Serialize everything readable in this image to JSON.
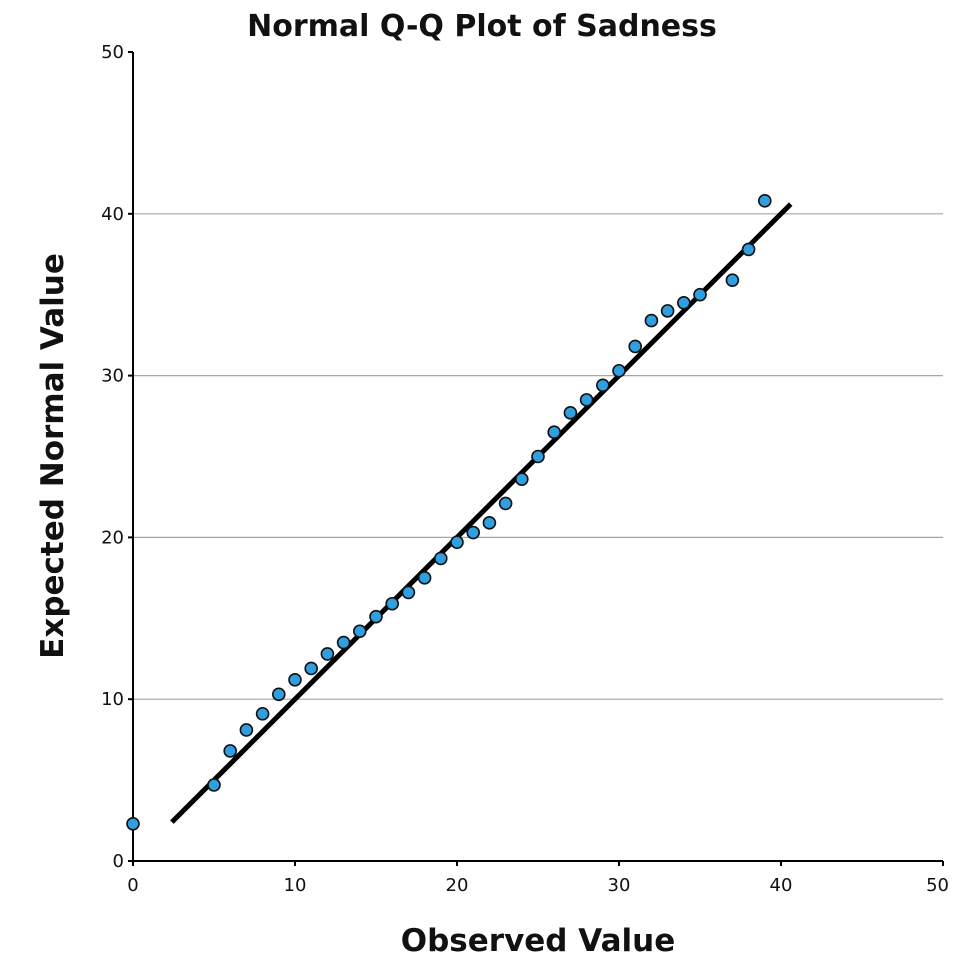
{
  "chart_data": {
    "type": "scatter",
    "title": "Normal Q-Q Plot of Sadness",
    "xlabel": "Observed Value",
    "ylabel": "Expected Normal Value",
    "xlim": [
      0,
      50
    ],
    "ylim": [
      0,
      50
    ],
    "x_ticks": [
      "0",
      "10",
      "20",
      "30",
      "40",
      "50"
    ],
    "y_ticks": [
      "0",
      "10",
      "20",
      "30",
      "40",
      "50"
    ],
    "grid": "horizontal",
    "marker_color": "#2f9fe0",
    "reference_line": {
      "x": [
        2.4,
        40.6
      ],
      "y": [
        2.4,
        40.6
      ]
    },
    "points": [
      {
        "x": 0,
        "y": 2.3
      },
      {
        "x": 5,
        "y": 4.7
      },
      {
        "x": 6,
        "y": 6.8
      },
      {
        "x": 7,
        "y": 8.1
      },
      {
        "x": 8,
        "y": 9.1
      },
      {
        "x": 9,
        "y": 10.3
      },
      {
        "x": 10,
        "y": 11.2
      },
      {
        "x": 11,
        "y": 11.9
      },
      {
        "x": 12,
        "y": 12.8
      },
      {
        "x": 13,
        "y": 13.5
      },
      {
        "x": 14,
        "y": 14.2
      },
      {
        "x": 15,
        "y": 15.1
      },
      {
        "x": 16,
        "y": 15.9
      },
      {
        "x": 17,
        "y": 16.6
      },
      {
        "x": 18,
        "y": 17.5
      },
      {
        "x": 19,
        "y": 18.7
      },
      {
        "x": 20,
        "y": 19.7
      },
      {
        "x": 21,
        "y": 20.3
      },
      {
        "x": 22,
        "y": 20.9
      },
      {
        "x": 23,
        "y": 22.1
      },
      {
        "x": 24,
        "y": 23.6
      },
      {
        "x": 25,
        "y": 25.0
      },
      {
        "x": 26,
        "y": 26.5
      },
      {
        "x": 27,
        "y": 27.7
      },
      {
        "x": 28,
        "y": 28.5
      },
      {
        "x": 29,
        "y": 29.4
      },
      {
        "x": 30,
        "y": 30.3
      },
      {
        "x": 31,
        "y": 31.8
      },
      {
        "x": 32,
        "y": 33.4
      },
      {
        "x": 33,
        "y": 34.0
      },
      {
        "x": 34,
        "y": 34.5
      },
      {
        "x": 35,
        "y": 35.0
      },
      {
        "x": 37,
        "y": 35.9
      },
      {
        "x": 38,
        "y": 37.8
      },
      {
        "x": 39,
        "y": 40.8
      }
    ]
  }
}
